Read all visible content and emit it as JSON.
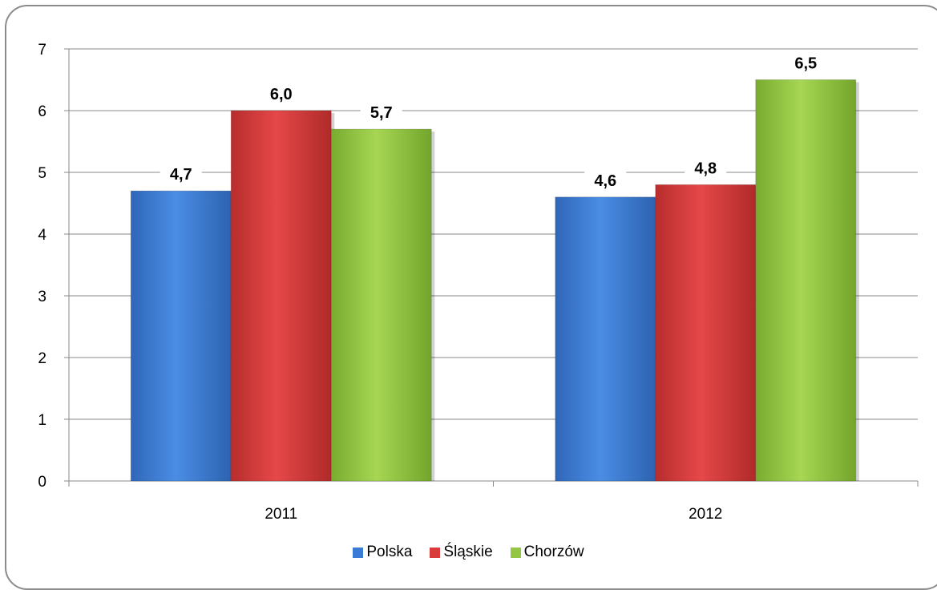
{
  "chart_data": {
    "type": "bar",
    "categories": [
      "2011",
      "2012"
    ],
    "series": [
      {
        "name": "Polska",
        "values": [
          4.7,
          4.6
        ],
        "labels": [
          "4,7",
          "4,6"
        ],
        "color": "#3a7bd5"
      },
      {
        "name": "Śląskie",
        "values": [
          6.0,
          4.8
        ],
        "labels": [
          "6,0",
          "4,8"
        ],
        "color": "#d93a3a"
      },
      {
        "name": "Chorzów",
        "values": [
          5.7,
          6.5
        ],
        "labels": [
          "5,7",
          "6,5"
        ],
        "color": "#93c743"
      }
    ],
    "ylim": [
      0,
      7
    ],
    "yticks": [
      "0",
      "1",
      "2",
      "3",
      "4",
      "5",
      "6",
      "7"
    ],
    "grid": true,
    "legend_position": "bottom"
  }
}
